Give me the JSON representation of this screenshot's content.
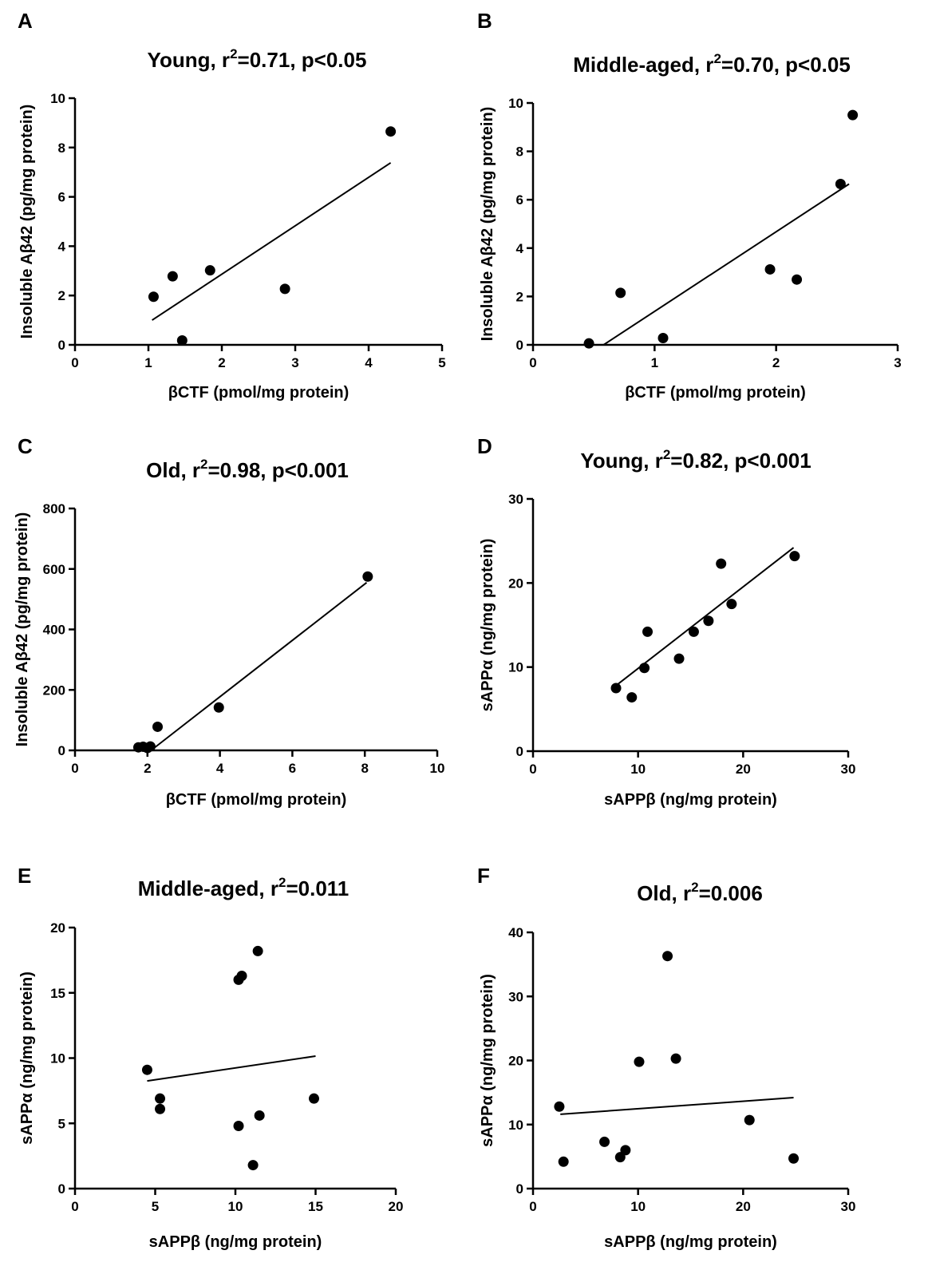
{
  "chart_data": [
    {
      "type": "scatter",
      "panel": "A",
      "title": {
        "main": "Young, r",
        "sup": "2",
        "rest": "=0.71, p<0.05"
      },
      "xlabel": "βCTF (pmol/mg protein)",
      "ylabel": "Insoluble Aβ42 (pg/mg protein)",
      "xlim": [
        0,
        5
      ],
      "ylim": [
        0,
        10
      ],
      "xticks": [
        0,
        1,
        2,
        3,
        4,
        5
      ],
      "yticks": [
        0,
        2,
        4,
        6,
        8,
        10
      ],
      "points": [
        {
          "x": 1.07,
          "y": 1.95
        },
        {
          "x": 1.33,
          "y": 2.78
        },
        {
          "x": 1.84,
          "y": 3.02
        },
        {
          "x": 1.46,
          "y": 0.18
        },
        {
          "x": 2.86,
          "y": 2.27
        },
        {
          "x": 4.3,
          "y": 8.65
        }
      ],
      "fit_line": [
        {
          "x": 1.05,
          "y": 1.0
        },
        {
          "x": 4.3,
          "y": 7.38
        }
      ]
    },
    {
      "type": "scatter",
      "panel": "B",
      "title": {
        "main": "Middle-aged, r",
        "sup": "2",
        "rest": "=0.70, p<0.05"
      },
      "xlabel": "βCTF (pmol/mg protein)",
      "ylabel": "Insoluble Aβ42 (pg/mg protein)",
      "xlim": [
        0,
        3
      ],
      "ylim": [
        0,
        10
      ],
      "xticks": [
        0,
        1,
        2,
        3
      ],
      "yticks": [
        0,
        2,
        4,
        6,
        8,
        10
      ],
      "points": [
        {
          "x": 0.46,
          "y": 0.06
        },
        {
          "x": 0.72,
          "y": 2.15
        },
        {
          "x": 1.07,
          "y": 0.28
        },
        {
          "x": 1.95,
          "y": 3.12
        },
        {
          "x": 2.17,
          "y": 2.7
        },
        {
          "x": 2.53,
          "y": 6.65
        },
        {
          "x": 2.63,
          "y": 9.5
        }
      ],
      "fit_line": [
        {
          "x": 0.58,
          "y": 0.0
        },
        {
          "x": 2.6,
          "y": 6.65
        }
      ]
    },
    {
      "type": "scatter",
      "panel": "C",
      "title": {
        "main": "Old, r",
        "sup": "2",
        "rest": "=0.98, p<0.001"
      },
      "xlabel": "βCTF (pmol/mg protein)",
      "ylabel": "Insoluble Aβ42 (pg/mg protein)",
      "xlim": [
        0,
        10
      ],
      "ylim": [
        0,
        800
      ],
      "xticks": [
        0,
        2,
        4,
        6,
        8,
        10
      ],
      "yticks": [
        0,
        200,
        400,
        600,
        800
      ],
      "points": [
        {
          "x": 1.75,
          "y": 10
        },
        {
          "x": 1.88,
          "y": 12
        },
        {
          "x": 2.0,
          "y": 8
        },
        {
          "x": 2.08,
          "y": 13
        },
        {
          "x": 2.28,
          "y": 78
        },
        {
          "x": 3.97,
          "y": 142
        },
        {
          "x": 8.08,
          "y": 575
        }
      ],
      "fit_line": [
        {
          "x": 2.1,
          "y": 0
        },
        {
          "x": 8.05,
          "y": 555
        }
      ]
    },
    {
      "type": "scatter",
      "panel": "D",
      "title": {
        "main": "Young, r",
        "sup": "2",
        "rest": "=0.82, p<0.001"
      },
      "xlabel": "sAPPβ (ng/mg protein)",
      "ylabel": "sAPPα (ng/mg protein)",
      "xlim": [
        0,
        30
      ],
      "ylim": [
        0,
        30
      ],
      "xticks": [
        0,
        10,
        20,
        30
      ],
      "yticks": [
        0,
        10,
        20,
        30
      ],
      "points": [
        {
          "x": 7.9,
          "y": 7.5
        },
        {
          "x": 9.4,
          "y": 6.4
        },
        {
          "x": 10.6,
          "y": 9.9
        },
        {
          "x": 10.9,
          "y": 14.2
        },
        {
          "x": 13.9,
          "y": 11.0
        },
        {
          "x": 15.3,
          "y": 14.2
        },
        {
          "x": 16.7,
          "y": 15.5
        },
        {
          "x": 17.9,
          "y": 22.3
        },
        {
          "x": 18.9,
          "y": 17.5
        },
        {
          "x": 24.9,
          "y": 23.2
        }
      ],
      "fit_line": [
        {
          "x": 8.0,
          "y": 7.9
        },
        {
          "x": 24.8,
          "y": 24.2
        }
      ]
    },
    {
      "type": "scatter",
      "panel": "E",
      "title": {
        "main": "Middle-aged, r",
        "sup": "2",
        "rest": "=0.011"
      },
      "xlabel": "sAPPβ (ng/mg protein)",
      "ylabel": "sAPPα (ng/mg protein)",
      "xlim": [
        0,
        20
      ],
      "ylim": [
        0,
        20
      ],
      "xticks": [
        0,
        5,
        10,
        15,
        20
      ],
      "yticks": [
        0,
        5,
        10,
        15,
        20
      ],
      "points": [
        {
          "x": 4.5,
          "y": 9.1
        },
        {
          "x": 5.3,
          "y": 6.9
        },
        {
          "x": 5.3,
          "y": 6.1
        },
        {
          "x": 10.2,
          "y": 16.0
        },
        {
          "x": 10.4,
          "y": 16.3
        },
        {
          "x": 11.4,
          "y": 18.2
        },
        {
          "x": 10.2,
          "y": 4.8
        },
        {
          "x": 11.5,
          "y": 5.6
        },
        {
          "x": 11.1,
          "y": 1.8
        },
        {
          "x": 14.9,
          "y": 6.9
        }
      ],
      "fit_line": [
        {
          "x": 4.5,
          "y": 8.25
        },
        {
          "x": 15.0,
          "y": 10.15
        }
      ]
    },
    {
      "type": "scatter",
      "panel": "F",
      "title": {
        "main": "Old, r",
        "sup": "2",
        "rest": "=0.006"
      },
      "xlabel": "sAPPβ (ng/mg protein)",
      "ylabel": "sAPPα (ng/mg protein)",
      "xlim": [
        0,
        30
      ],
      "ylim": [
        0,
        40
      ],
      "xticks": [
        0,
        10,
        20,
        30
      ],
      "yticks": [
        0,
        10,
        20,
        30,
        40
      ],
      "points": [
        {
          "x": 2.5,
          "y": 12.8
        },
        {
          "x": 2.9,
          "y": 4.2
        },
        {
          "x": 6.8,
          "y": 7.3
        },
        {
          "x": 8.3,
          "y": 4.9
        },
        {
          "x": 8.8,
          "y": 6.0
        },
        {
          "x": 10.1,
          "y": 19.8
        },
        {
          "x": 12.8,
          "y": 36.3
        },
        {
          "x": 13.6,
          "y": 20.3
        },
        {
          "x": 20.6,
          "y": 10.7
        },
        {
          "x": 24.8,
          "y": 4.7
        }
      ],
      "fit_line": [
        {
          "x": 2.6,
          "y": 11.6
        },
        {
          "x": 24.8,
          "y": 14.2
        }
      ]
    }
  ]
}
